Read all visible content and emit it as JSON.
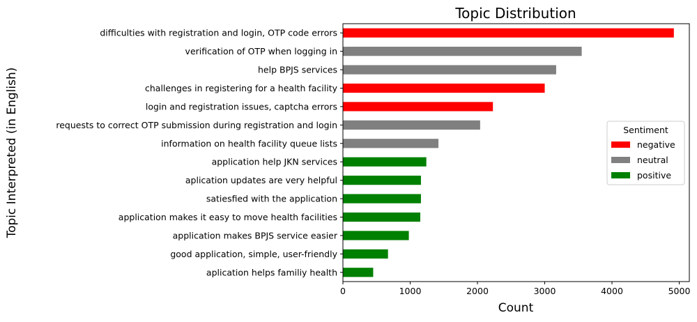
{
  "chart_data": {
    "type": "bar",
    "orientation": "horizontal",
    "title": "Topic Distribution",
    "xlabel": "Count",
    "ylabel": "Topic Interpreted (in English)",
    "xlim": [
      0,
      5150
    ],
    "xticks": [
      0,
      1000,
      2000,
      3000,
      4000,
      5000
    ],
    "grid": false,
    "legend": {
      "title": "Sentiment",
      "placement": "center-right",
      "entries": [
        {
          "label": "negative",
          "color": "#ff0000"
        },
        {
          "label": "neutral",
          "color": "#808080"
        },
        {
          "label": "positive",
          "color": "#008000"
        }
      ]
    },
    "bars": [
      {
        "category": "difficulties with registration and login, OTP code errors",
        "value": 4920,
        "sentiment": "negative"
      },
      {
        "category": "verification of OTP when logging in",
        "value": 3550,
        "sentiment": "neutral"
      },
      {
        "category": "help BPJS services",
        "value": 3170,
        "sentiment": "neutral"
      },
      {
        "category": "challenges in registering for a health facility",
        "value": 3000,
        "sentiment": "negative"
      },
      {
        "category": "login and registration issues, captcha errors",
        "value": 2230,
        "sentiment": "negative"
      },
      {
        "category": "requests to correct OTP submission during registration and login",
        "value": 2040,
        "sentiment": "neutral"
      },
      {
        "category": "information on health facility queue lists",
        "value": 1420,
        "sentiment": "neutral"
      },
      {
        "category": "application help JKN services",
        "value": 1240,
        "sentiment": "positive"
      },
      {
        "category": "aplication updates are very helpful",
        "value": 1160,
        "sentiment": "positive"
      },
      {
        "category": "satiesfied with the application",
        "value": 1160,
        "sentiment": "positive"
      },
      {
        "category": "application makes it easy to move health facilities",
        "value": 1150,
        "sentiment": "positive"
      },
      {
        "category": "application makes BPJS service easier",
        "value": 980,
        "sentiment": "positive"
      },
      {
        "category": "good application, simple, user-friendly",
        "value": 670,
        "sentiment": "positive"
      },
      {
        "category": "aplication helps familiy health",
        "value": 450,
        "sentiment": "positive"
      }
    ]
  }
}
